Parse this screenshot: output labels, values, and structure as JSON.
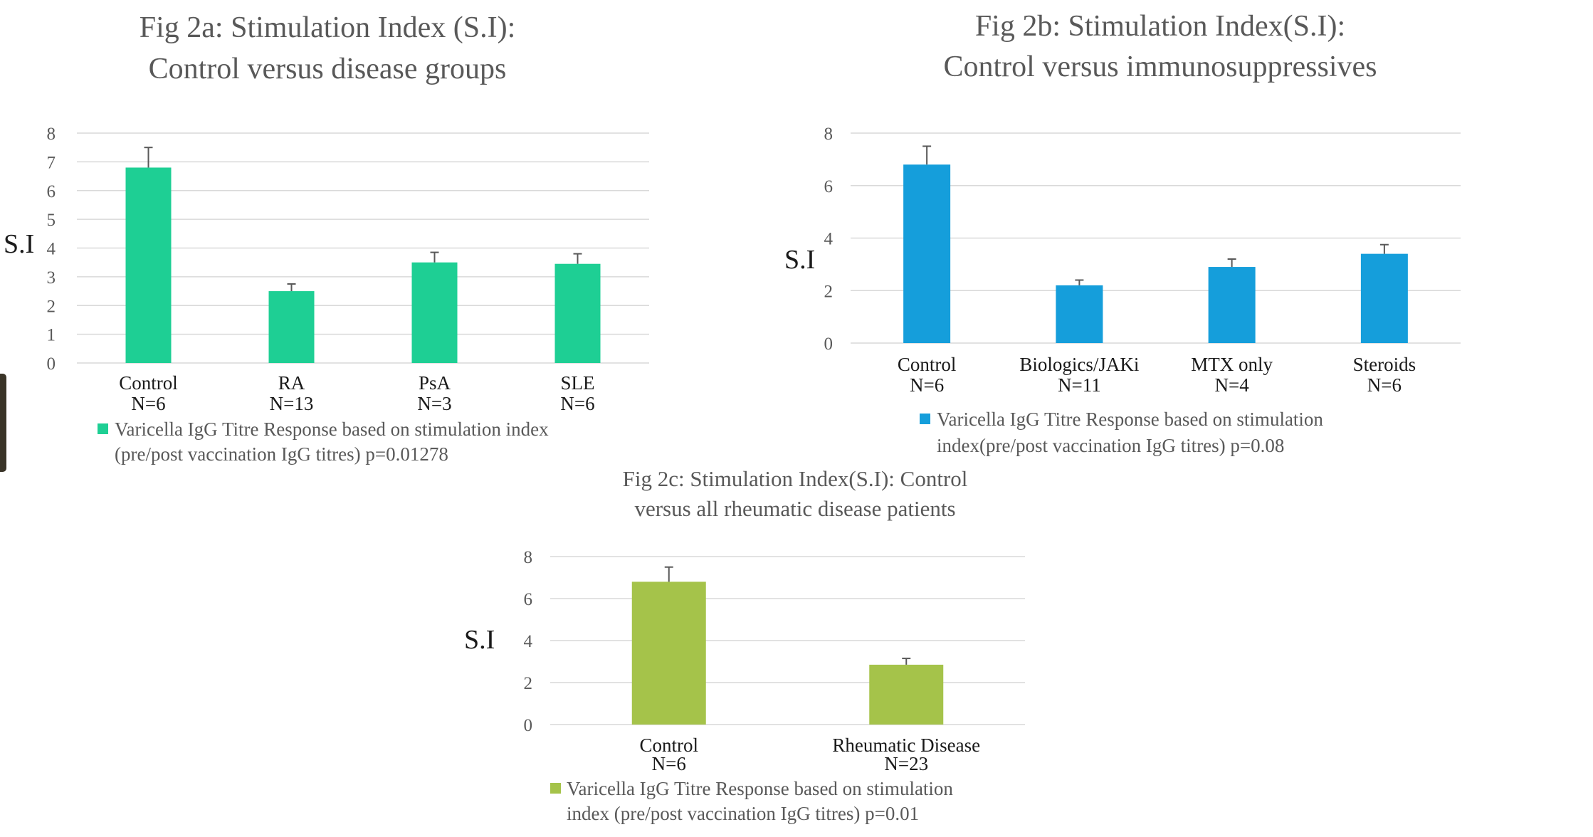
{
  "chart_data": [
    {
      "type": "bar",
      "title_lines": [
        "Fig 2a: Stimulation Index (S.I):",
        "Control versus disease groups"
      ],
      "ylabel": "S.I",
      "xlabel": "",
      "ylim": [
        0,
        8
      ],
      "yticks": [
        "0",
        "1",
        "2",
        "3",
        "4",
        "5",
        "6",
        "7",
        "8"
      ],
      "grid": true,
      "legend_position": "bottom",
      "categories": [
        [
          "Control",
          "N=6"
        ],
        [
          "RA",
          "N=13"
        ],
        [
          "PsA",
          "N=3"
        ],
        [
          "SLE",
          "N=6"
        ]
      ],
      "series": [
        {
          "name": "Varicella IgG Titre Response based on stimulation index (pre/post vaccination IgG titres) p=0.01278",
          "values": [
            6.8,
            2.5,
            3.5,
            3.45
          ],
          "error": [
            0.7,
            0.25,
            0.35,
            0.35
          ]
        }
      ],
      "legend_lines": [
        "Varicella IgG Titre Response based on stimulation index",
        "(pre/post vaccination IgG titres) p=0.01278"
      ],
      "color": "#1ecf94"
    },
    {
      "type": "bar",
      "title_lines": [
        "Fig 2b: Stimulation Index(S.I):",
        "Control versus immunosuppressives"
      ],
      "ylabel": "S.I",
      "xlabel": "",
      "ylim": [
        0,
        8
      ],
      "yticks": [
        "0",
        "2",
        "4",
        "6",
        "8"
      ],
      "grid": true,
      "legend_position": "bottom",
      "categories": [
        [
          "Control",
          "N=6"
        ],
        [
          "Biologics/JAKi",
          "N=11"
        ],
        [
          "MTX only",
          "N=4"
        ],
        [
          "Steroids",
          "N=6"
        ]
      ],
      "series": [
        {
          "name": "Varicella IgG Titre Response based on stimulation index(pre/post vaccination IgG titres) p=0.08",
          "values": [
            6.8,
            2.2,
            2.9,
            3.4
          ],
          "error": [
            0.7,
            0.2,
            0.3,
            0.35
          ]
        }
      ],
      "legend_lines": [
        "Varicella IgG Titre Response based on stimulation",
        "index(pre/post vaccination IgG titres) p=0.08"
      ],
      "color": "#159edb"
    },
    {
      "type": "bar",
      "title_lines": [
        "Fig 2c: Stimulation Index(S.I): Control",
        "versus all rheumatic disease patients"
      ],
      "ylabel": "S.I",
      "xlabel": "",
      "ylim": [
        0,
        8
      ],
      "yticks": [
        "0",
        "2",
        "4",
        "6",
        "8"
      ],
      "grid": true,
      "legend_position": "bottom",
      "categories": [
        [
          "Control",
          "N=6"
        ],
        [
          "Rheumatic Disease",
          "N=23"
        ]
      ],
      "series": [
        {
          "name": "Varicella IgG Titre Response based on stimulation index (pre/post vaccination IgG titres) p=0.01",
          "values": [
            6.8,
            2.85
          ],
          "error": [
            0.7,
            0.3
          ]
        }
      ],
      "legend_lines": [
        "Varicella IgG Titre Response based on stimulation",
        "index (pre/post vaccination IgG titres) p=0.01"
      ],
      "color": "#a5c34a"
    }
  ]
}
